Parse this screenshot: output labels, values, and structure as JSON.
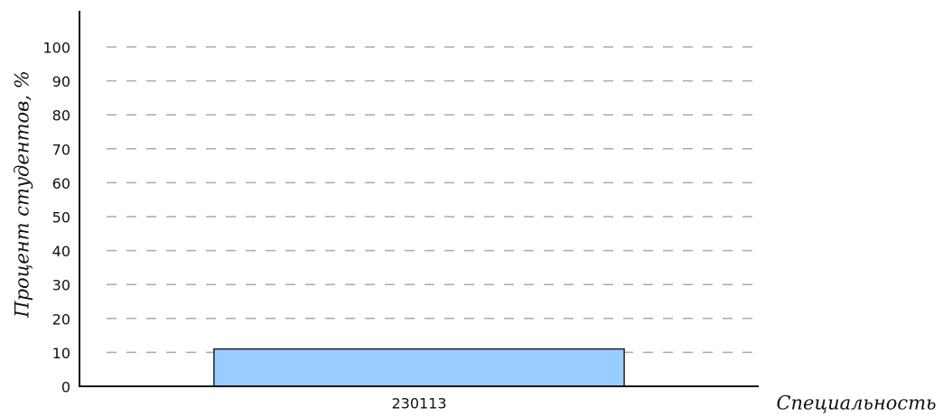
{
  "chart_data": {
    "type": "bar",
    "x_label": "Специальность",
    "y_label": "Процент студентов, %",
    "categories": [
      "230113"
    ],
    "values": [
      11
    ],
    "color": "#99ccff",
    "ylim": [
      0,
      100
    ],
    "yticks": [
      0,
      10,
      20,
      30,
      40,
      50,
      60,
      70,
      80,
      90,
      100
    ],
    "grid": true
  }
}
